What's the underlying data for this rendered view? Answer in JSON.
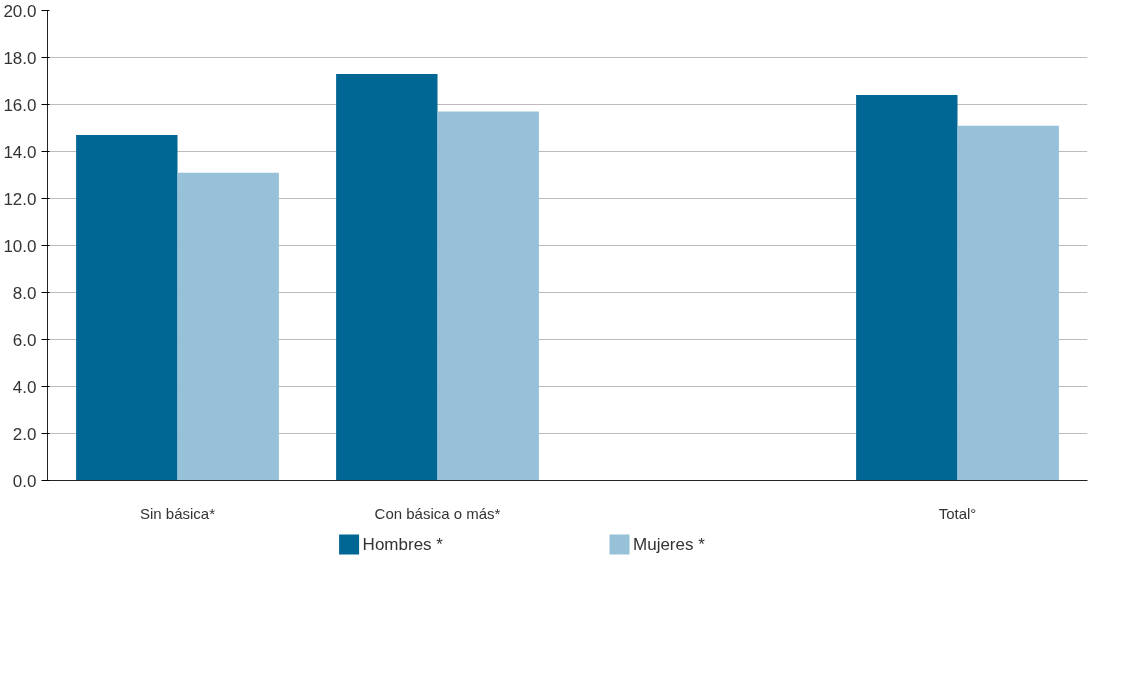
{
  "chart_data": {
    "type": "bar",
    "categories": [
      "Sin básica*",
      "Con básica o más*",
      null,
      "Total°"
    ],
    "series": [
      {
        "name": "Hombres *",
        "color": "#006694",
        "values": [
          14.7,
          17.3,
          null,
          16.4
        ]
      },
      {
        "name": "Mujeres *",
        "color": "#96c1d8",
        "values": [
          13.1,
          15.7,
          null,
          15.1
        ]
      }
    ],
    "ylim": [
      0,
      20
    ],
    "yticks": [
      {
        "value": 0,
        "label": "0.0"
      },
      {
        "value": 2,
        "label": "2.0"
      },
      {
        "value": 4,
        "label": "4.0"
      },
      {
        "value": 6,
        "label": "6.0"
      },
      {
        "value": 8,
        "label": "8.0"
      },
      {
        "value": 10,
        "label": "10.0"
      },
      {
        "value": 12,
        "label": "12.0"
      },
      {
        "value": 14,
        "label": "14.0"
      },
      {
        "value": 16,
        "label": "16.0"
      },
      {
        "value": 18,
        "label": "18.0"
      },
      {
        "value": 20,
        "label": "20.0"
      }
    ],
    "grid": "y",
    "legend": "bottom"
  }
}
